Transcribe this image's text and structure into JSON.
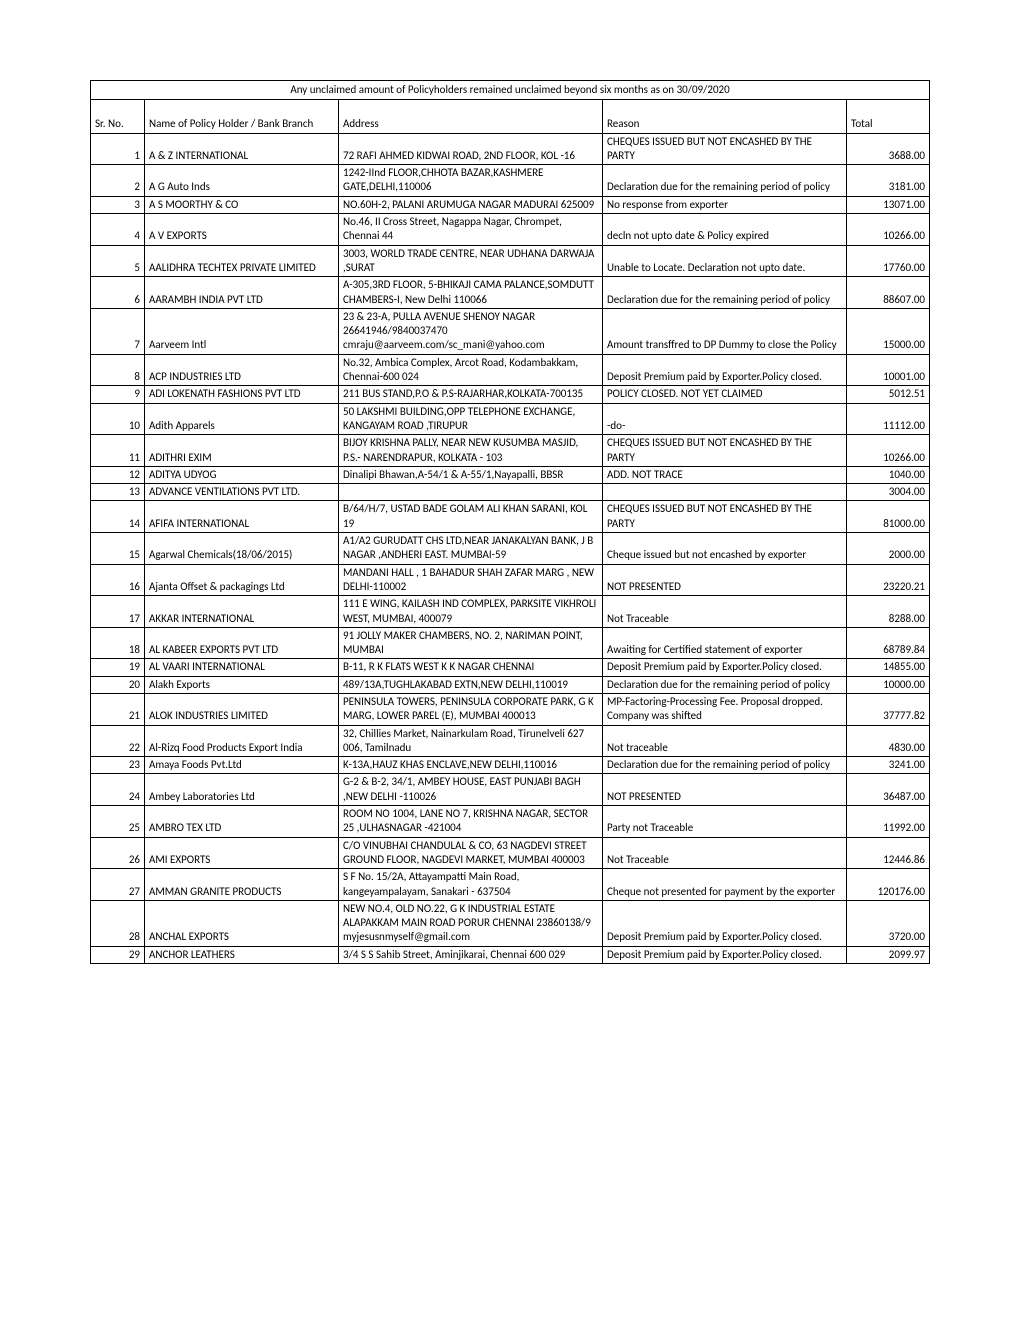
{
  "title": "Any unclaimed amount of Policyholders remained unclaimed beyond six months as on 30/09/2020",
  "headers": {
    "sr": "Sr. No.",
    "name": "Name of Policy Holder / Bank Branch",
    "address": "Address",
    "reason": "Reason",
    "total": "Total"
  },
  "rows": [
    {
      "sr": "1",
      "name": "A & Z INTERNATIONAL",
      "address": "72 RAFI AHMED KIDWAI ROAD, 2ND FLOOR, KOL -16",
      "reason": "CHEQUES ISSUED BUT NOT ENCASHED BY THE PARTY",
      "total": "3688.00"
    },
    {
      "sr": "2",
      "name": "A G Auto Inds",
      "address": "1242-IInd FLOOR,CHHOTA BAZAR,KASHMERE GATE,DELHI,110006",
      "reason": "Declaration due for the remaining period of policy",
      "total": "3181.00"
    },
    {
      "sr": "3",
      "name": "A S MOORTHY & CO",
      "address": "NO.60H-2, PALANI ARUMUGA NAGAR MADURAI 625009",
      "reason": "No response from exporter",
      "total": "13071.00"
    },
    {
      "sr": "4",
      "name": "A V EXPORTS",
      "address": "No.46, II Cross Street, Nagappa Nagar, Chrompet, Chennai 44",
      "reason": "decln not upto date & Policy expired",
      "total": "10266.00"
    },
    {
      "sr": "5",
      "name": "AALIDHRA TECHTEX PRIVATE LIMITED",
      "address": "3003, WORLD TRADE CENTRE, NEAR UDHANA DARWAJA ,SURAT",
      "reason": "Unable to Locate. Declaration not upto date.",
      "total": "17760.00"
    },
    {
      "sr": "6",
      "name": "AARAMBH INDIA PVT LTD",
      "address": "A-305,3RD FLOOR, 5-BHIKAJI CAMA PALANCE,SOMDUTT CHAMBERS-I, New Delhi 110066",
      "reason": "Declaration due for the remaining period of policy",
      "total": "88607.00"
    },
    {
      "sr": "7",
      "name": "Aarveem Intl",
      "address": "23 & 23-A, PULLA AVENUE SHENOY NAGAR 26641946/9840037470 cmraju@aarveem.com/sc_mani@yahoo.com",
      "reason": "Amount transffred to DP Dummy to close the Policy",
      "total": "15000.00"
    },
    {
      "sr": "8",
      "name": "ACP INDUSTRIES LTD",
      "address": "No.32, Ambica Complex, Arcot Road, Kodambakkam, Chennai-600 024",
      "reason": "Deposit Premium paid by Exporter.Policy closed.",
      "total": "10001.00"
    },
    {
      "sr": "9",
      "name": "ADI LOKENATH FASHIONS PVT LTD",
      "address": "211 BUS STAND,P.O & P.S-RAJARHAR,KOLKATA-700135",
      "reason": "POLICY CLOSED. NOT YET CLAIMED",
      "total": "5012.51"
    },
    {
      "sr": "10",
      "name": "Adith Apparels",
      "address": "50 LAKSHMI BUILDING,OPP TELEPHONE EXCHANGE,  KANGAYAM ROAD  ,TIRUPUR",
      "reason": "      -do-",
      "total": "11112.00"
    },
    {
      "sr": "11",
      "name": "ADITHRI EXIM",
      "address": "BIJOY KRISHNA PALLY,  NEAR NEW KUSUMBA MASJID, P.S.- NARENDRAPUR, KOLKATA - 103",
      "reason": "CHEQUES ISSUED BUT NOT ENCASHED BY THE PARTY",
      "total": "10266.00"
    },
    {
      "sr": "12",
      "name": "ADITYA UDYOG",
      "address": "Dinalipi Bhawan,A-54/1 & A-55/1,Nayapalli, BBSR",
      "reason": "ADD. NOT  TRACE",
      "total": "1040.00"
    },
    {
      "sr": "13",
      "name": "ADVANCE VENTILATIONS PVT LTD.",
      "address": "",
      "reason": "",
      "total": "3004.00"
    },
    {
      "sr": "14",
      "name": "AFIFA INTERNATIONAL",
      "address": "B/64/H/7, USTAD BADE GOLAM ALI KHAN SARANI, KOL 19",
      "reason": "CHEQUES ISSUED BUT NOT ENCASHED BY THE PARTY",
      "total": "81000.00"
    },
    {
      "sr": "15",
      "name": "Agarwal Chemicals(18/06/2015)",
      "address": "A1/A2 GURUDATT CHS LTD,NEAR JANAKALYAN BANK, J B NAGAR ,ANDHERI EAST. MUMBAI-59",
      "reason": "Cheque issued but not encashed by exporter",
      "total": "2000.00"
    },
    {
      "sr": "16",
      "name": "Ajanta Offset & packagings Ltd",
      "address": "MANDANI HALL , 1 BAHADUR SHAH ZAFAR MARG , NEW DELHI-110002",
      "reason": "NOT PRESENTED",
      "total": "23220.21"
    },
    {
      "sr": "17",
      "name": "AKKAR INTERNATIONAL",
      "address": "111 E WING, KAILASH IND COMPLEX, PARKSITE VIKHROLI WEST, MUMBAI, 400079",
      "reason": "Not Traceable",
      "total": "8288.00"
    },
    {
      "sr": "18",
      "name": "AL KABEER EXPORTS PVT LTD",
      "address": "91 JOLLY MAKER CHAMBERS, NO. 2, NARIMAN POINT, MUMBAI",
      "reason": "Awaiting for Certified statement of exporter",
      "total": "68789.84"
    },
    {
      "sr": "19",
      "name": "AL VAARI INTERNATIONAL",
      "address": "B-11, R K FLATS WEST K K NAGAR CHENNAI",
      "reason": "Deposit Premium paid by Exporter.Policy closed.",
      "total": "14855.00"
    },
    {
      "sr": "20",
      "name": "Alakh Exports",
      "address": "489/13A,TUGHLAKABAD EXTN,NEW DELHI,110019",
      "reason": "Declaration due for the remaining period of policy",
      "total": "10000.00"
    },
    {
      "sr": "21",
      "name": "ALOK INDUSTRIES LIMITED",
      "address": "PENINSULA TOWERS, PENINSULA CORPORATE PARK, G K MARG, LOWER PAREL (E), MUMBAI 400013",
      "reason": "MP-Factoring-Processing Fee. Proposal dropped. Company was shifted",
      "total": "37777.82"
    },
    {
      "sr": "22",
      "name": "Al-Rizq Food Products Export India",
      "address": "32, Chillies Market, Nainarkulam Road, Tirunelveli 627 006, Tamilnadu",
      "reason": "Not traceable",
      "total": "4830.00"
    },
    {
      "sr": "23",
      "name": "Amaya Foods Pvt.Ltd",
      "address": "K-13A,HAUZ KHAS ENCLAVE,NEW DELHI,110016",
      "reason": "Declaration due for the remaining period of policy",
      "total": "3241.00"
    },
    {
      "sr": "24",
      "name": "Ambey Laboratories Ltd",
      "address": "G-2 & B-2, 34/1, AMBEY HOUSE, EAST PUNJABI BAGH ,NEW DELHI -110026",
      "reason": "NOT PRESENTED",
      "total": "36487.00"
    },
    {
      "sr": "25",
      "name": "AMBRO TEX LTD",
      "address": "ROOM NO 1004, LANE NO 7, KRISHNA NAGAR, SECTOR 25 ,ULHASNAGAR -421004",
      "reason": "Party not Traceable",
      "total": "11992.00"
    },
    {
      "sr": "26",
      "name": "AMI EXPORTS",
      "address": "C/O VINUBHAI CHANDULAL & CO, 63 NAGDEVI STREET GROUND FLOOR, NAGDEVI MARKET, MUMBAI 400003",
      "reason": "Not Traceable",
      "total": "12446.86"
    },
    {
      "sr": "27",
      "name": "AMMAN GRANITE PRODUCTS",
      "address": "S F No. 15/2A, Attayampatti Main Road, kangeyampalayam, Sanakari - 637504",
      "reason": "Cheque not presented for payment by the exporter",
      "total": "120176.00"
    },
    {
      "sr": "28",
      "name": "ANCHAL EXPORTS",
      "address": "NEW NO.4, OLD NO.22, G K INDUSTRIAL ESTATE ALAPAKKAM MAIN ROAD  PORUR CHENNAI 23860138/9 myjesusnmyself@gmail.com",
      "reason": "Deposit Premium paid by Exporter.Policy closed.",
      "total": "3720.00"
    },
    {
      "sr": "29",
      "name": "ANCHOR LEATHERS",
      "address": "3/4 S S Sahib Street,  Aminjikarai,  Chennai 600 029",
      "reason": "Deposit Premium paid by Exporter.Policy closed.",
      "total": "2099.97"
    }
  ]
}
